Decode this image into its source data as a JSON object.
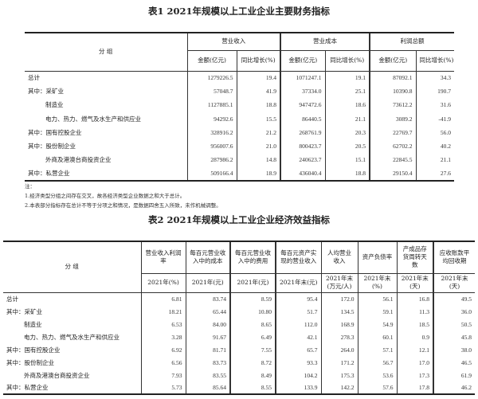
{
  "table1": {
    "title": "表1  2021年规模以上工业企业主要财务指标",
    "group_header": "分  组",
    "column_groups": [
      "营业收入",
      "营业成本",
      "利润总额"
    ],
    "sub_headers": [
      "金额(亿元)",
      "同比增长(%)",
      "金额(亿元)",
      "同比增长(%)",
      "金额(亿元)",
      "同比增长(%)"
    ],
    "rows": [
      {
        "label": "总计",
        "indent": false,
        "values": [
          "1279226.5",
          "19.4",
          "1071247.1",
          "19.1",
          "87092.1",
          "34.3"
        ]
      },
      {
        "label": "其中：采矿业",
        "indent": false,
        "values": [
          "57048.7",
          "41.9",
          "37334.0",
          "25.1",
          "10390.8",
          "190.7"
        ]
      },
      {
        "label": "制造业",
        "indent": true,
        "values": [
          "1127885.1",
          "18.8",
          "947472.6",
          "18.6",
          "73612.2",
          "31.6"
        ]
      },
      {
        "label": "电力、热力、燃气及水生产和供应业",
        "indent": true,
        "values": [
          "94292.6",
          "15.5",
          "86440.5",
          "21.1",
          "3089.2",
          "-41.9"
        ]
      },
      {
        "label": "其中：国有控股企业",
        "indent": false,
        "values": [
          "328916.2",
          "21.2",
          "268761.9",
          "20.3",
          "22769.7",
          "56.0"
        ]
      },
      {
        "label": "其中：股份制企业",
        "indent": false,
        "values": [
          "956007.6",
          "21.0",
          "800423.7",
          "20.5",
          "62702.2",
          "40.2"
        ]
      },
      {
        "label": "外商及港澳台商投资企业",
        "indent": true,
        "values": [
          "287986.2",
          "14.8",
          "240623.7",
          "15.1",
          "22845.5",
          "21.1"
        ]
      },
      {
        "label": "其中：私营企业",
        "indent": false,
        "values": [
          "509166.4",
          "18.9",
          "436040.4",
          "18.8",
          "29150.4",
          "27.6"
        ]
      }
    ],
    "notes": [
      "注：",
      "1.经济类型分组之间存在交叉，故各经济类型企业数据之和大于总计。",
      "2.本表部分指标存在总计不等于分项之和情况，是数据四舍五入所致，未作机械调整。"
    ]
  },
  "table2": {
    "title": "表2  2021年规模以上工业企业经济效益指标",
    "group_header": "分  组",
    "headers": [
      "营业收入利润率",
      "每百元营业收入中的成本",
      "每百元营业收入中的费用",
      "每百元资产实现的营业收入",
      "人均营业收入",
      "资产负债率",
      "产成品存货周转天数",
      "应收账款平均回收期"
    ],
    "sub_headers": [
      "2021年(%)",
      "2021年(元)",
      "2021年(元)",
      "2021年末(元)",
      "2021年末(万元/人)",
      "2021年末(%)",
      "2021年末(天)",
      "2021年末(天)"
    ],
    "rows": [
      {
        "label": "总计",
        "indent": false,
        "values": [
          "6.81",
          "83.74",
          "8.59",
          "95.4",
          "172.0",
          "56.1",
          "16.8",
          "49.5"
        ]
      },
      {
        "label": "其中：采矿业",
        "indent": false,
        "values": [
          "18.21",
          "65.44",
          "10.80",
          "51.7",
          "134.5",
          "59.1",
          "11.3",
          "36.0"
        ]
      },
      {
        "label": "制造业",
        "indent": true,
        "values": [
          "6.53",
          "84.00",
          "8.65",
          "112.0",
          "168.9",
          "54.9",
          "18.5",
          "50.5"
        ]
      },
      {
        "label": "电力、热力、燃气及水生产和供应业",
        "indent": true,
        "values": [
          "3.28",
          "91.67",
          "6.49",
          "42.1",
          "278.3",
          "60.1",
          "0.9",
          "45.8"
        ]
      },
      {
        "label": "其中：国有控股企业",
        "indent": false,
        "values": [
          "6.92",
          "81.71",
          "7.55",
          "65.7",
          "264.0",
          "57.1",
          "12.1",
          "38.0"
        ]
      },
      {
        "label": "其中：股份制企业",
        "indent": false,
        "values": [
          "6.56",
          "83.73",
          "8.72",
          "93.3",
          "171.2",
          "56.7",
          "17.0",
          "46.5"
        ]
      },
      {
        "label": "外商及港澳台商投资企业",
        "indent": true,
        "values": [
          "7.93",
          "83.55",
          "8.49",
          "104.2",
          "175.3",
          "53.6",
          "17.3",
          "61.9"
        ]
      },
      {
        "label": "其中：私营企业",
        "indent": false,
        "values": [
          "5.73",
          "85.64",
          "8.55",
          "133.9",
          "142.2",
          "57.6",
          "17.8",
          "46.2"
        ]
      }
    ]
  }
}
